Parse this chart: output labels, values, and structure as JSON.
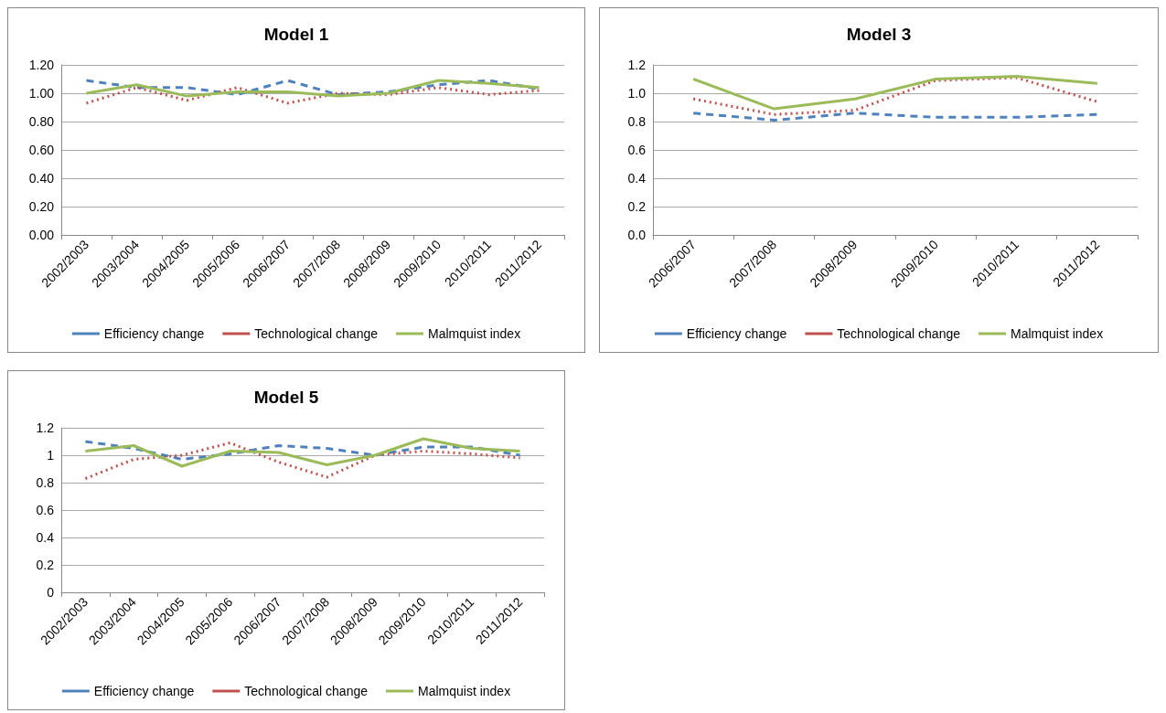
{
  "chart_data": [
    {
      "type": "line",
      "title": "Model 1",
      "categories": [
        "2002/2003",
        "2003/2004",
        "2004/2005",
        "2005/2006",
        "2006/2007",
        "2007/2008",
        "2008/2009",
        "2009/2010",
        "2010/2011",
        "2011/2012"
      ],
      "series": [
        {
          "name": "Efficiency change",
          "color": "#4f81bd",
          "line_style": "dashed",
          "values": [
            1.09,
            1.04,
            1.04,
            0.99,
            1.09,
            0.99,
            1.01,
            1.06,
            1.09,
            1.03
          ]
        },
        {
          "name": "Technological change",
          "color": "#c0504d",
          "line_style": "dotted",
          "values": [
            0.93,
            1.04,
            0.95,
            1.04,
            0.93,
            1.0,
            0.99,
            1.04,
            0.99,
            1.02
          ]
        },
        {
          "name": "Malmquist index",
          "color": "#9bbb59",
          "line_style": "solid",
          "values": [
            1.0,
            1.06,
            0.98,
            1.01,
            1.01,
            0.98,
            1.0,
            1.09,
            1.07,
            1.04
          ]
        }
      ],
      "ylim": [
        0,
        1.2
      ],
      "yticks": [
        {
          "value": 0,
          "label": "0.00"
        },
        {
          "value": 0.2,
          "label": "0.20"
        },
        {
          "value": 0.4,
          "label": "0.40"
        },
        {
          "value": 0.6,
          "label": "0.60"
        },
        {
          "value": 0.8,
          "label": "0.80"
        },
        {
          "value": 1,
          "label": "1.00"
        },
        {
          "value": 1.2,
          "label": "1.20"
        }
      ],
      "grid": "y",
      "legend": "bottom",
      "marker": "none"
    },
    {
      "type": "line",
      "title": "Model 3",
      "categories": [
        "2006/2007",
        "2007/2008",
        "2008/2009",
        "2009/2010",
        "2010/2011",
        "2011/2012"
      ],
      "series": [
        {
          "name": "Efficiency change",
          "color": "#4f81bd",
          "line_style": "dashed",
          "values": [
            0.86,
            0.81,
            0.86,
            0.83,
            0.83,
            0.85
          ]
        },
        {
          "name": "Technological change",
          "color": "#c0504d",
          "line_style": "dotted",
          "values": [
            0.96,
            0.85,
            0.88,
            1.09,
            1.11,
            0.94
          ]
        },
        {
          "name": "Malmquist index",
          "color": "#9bbb59",
          "line_style": "solid",
          "values": [
            1.1,
            0.89,
            0.96,
            1.1,
            1.12,
            1.07
          ]
        }
      ],
      "ylim": [
        0,
        1.2
      ],
      "yticks": [
        {
          "value": 0,
          "label": "0.0"
        },
        0.2,
        0.4,
        0.6,
        0.8,
        {
          "value": 1,
          "label": "1.0"
        },
        1.2
      ],
      "grid": "y",
      "legend": "bottom",
      "marker": "none"
    },
    {
      "type": "line",
      "title": "Model 5",
      "categories": [
        "2002/2003",
        "2003/2004",
        "2004/2005",
        "2005/2006",
        "2006/2007",
        "2007/2008",
        "2008/2009",
        "2009/2010",
        "2010/2011",
        "2011/2012"
      ],
      "series": [
        {
          "name": "Efficiency change",
          "color": "#4f81bd",
          "line_style": "dashed",
          "values": [
            1.1,
            1.05,
            0.97,
            1.01,
            1.07,
            1.05,
            1.0,
            1.06,
            1.06,
            1.0
          ]
        },
        {
          "name": "Technological change",
          "color": "#c0504d",
          "line_style": "dotted",
          "values": [
            0.83,
            0.97,
            1.0,
            1.09,
            0.95,
            0.84,
            1.0,
            1.03,
            1.01,
            0.98
          ]
        },
        {
          "name": "Malmquist index",
          "color": "#9bbb59",
          "line_style": "solid",
          "values": [
            1.03,
            1.07,
            0.92,
            1.03,
            1.02,
            0.93,
            1.0,
            1.12,
            1.05,
            1.03
          ]
        }
      ],
      "ylim": [
        0,
        1.2
      ],
      "yticks": [
        0,
        0.2,
        0.4,
        0.6,
        0.8,
        1,
        1.2
      ],
      "grid": "y",
      "legend": "bottom",
      "marker": "none"
    }
  ]
}
